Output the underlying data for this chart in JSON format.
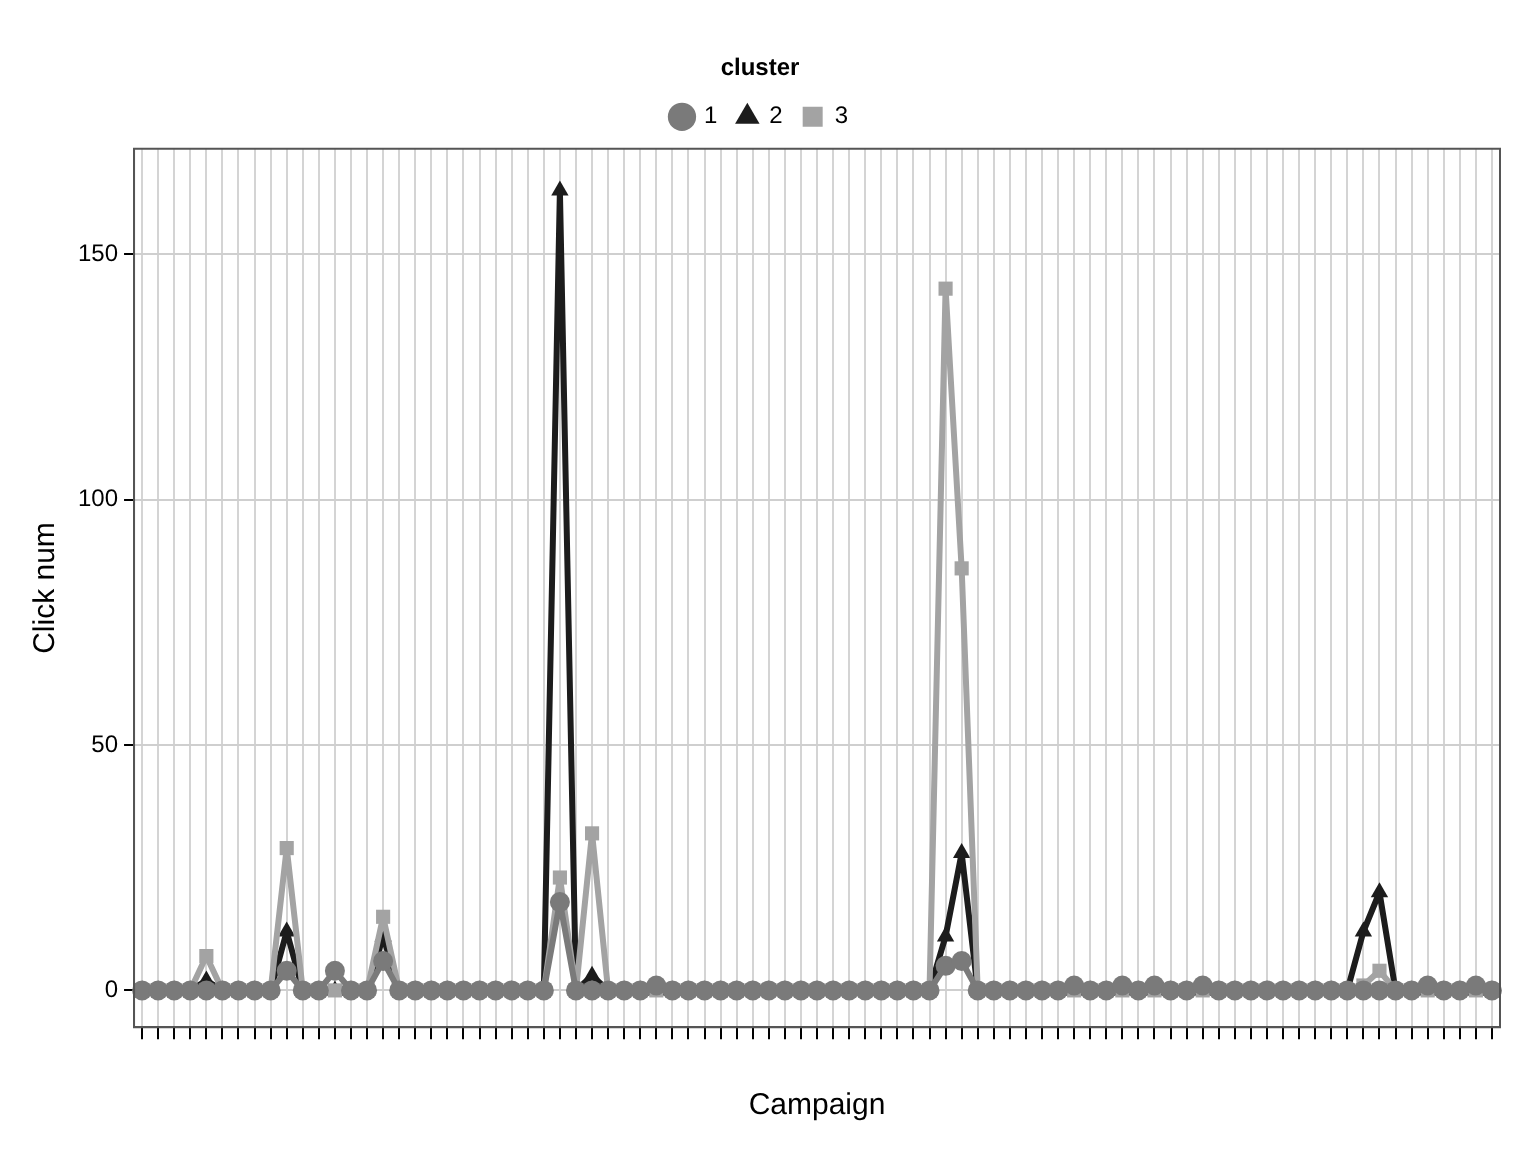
{
  "chart_data": {
    "type": "line",
    "xlabel": "Campaign",
    "ylabel": "Click num",
    "legend_title": "cluster",
    "legend": "top",
    "grid": true,
    "line_style": "solid",
    "categories": [
      null,
      null,
      null,
      null,
      null,
      null,
      null,
      null,
      null,
      null,
      null,
      null,
      null,
      null,
      null,
      null,
      null,
      null,
      null,
      null,
      null,
      null,
      null,
      null,
      null,
      null,
      null,
      null,
      null,
      null,
      null,
      null,
      null,
      null,
      null,
      null,
      null,
      null,
      null,
      null,
      null,
      null,
      null,
      null,
      null,
      null,
      null,
      null,
      null,
      null,
      null,
      null,
      null,
      null,
      null,
      null,
      null,
      null,
      null,
      null,
      null,
      null,
      null,
      null,
      null,
      null,
      null,
      null,
      null,
      null,
      null,
      null,
      null,
      null,
      null,
      null,
      null,
      null,
      null,
      null,
      null,
      null,
      null,
      null,
      null
    ],
    "ylim": [
      -7.5,
      171.5
    ],
    "yticks": [
      0,
      50,
      100,
      150
    ],
    "series": [
      {
        "name": "1",
        "color": "#7a7a7a",
        "marker": "circle",
        "values": [
          0,
          0,
          0,
          0,
          0,
          0,
          0,
          0,
          0,
          4,
          0,
          0,
          4,
          0,
          0,
          6,
          0,
          0,
          0,
          0,
          0,
          0,
          0,
          0,
          0,
          0,
          18,
          0,
          0,
          0,
          0,
          0,
          1,
          0,
          0,
          0,
          0,
          0,
          0,
          0,
          0,
          0,
          0,
          0,
          0,
          0,
          0,
          0,
          0,
          0,
          5,
          6,
          0,
          0,
          0,
          0,
          0,
          0,
          1,
          0,
          0,
          1,
          0,
          1,
          0,
          0,
          1,
          0,
          0,
          0,
          0,
          0,
          0,
          0,
          0,
          0,
          0,
          0,
          0,
          0,
          1,
          0,
          0,
          1,
          0
        ]
      },
      {
        "name": "2",
        "color": "#1c1c1c",
        "marker": "triangle",
        "values": [
          0,
          0,
          0,
          0,
          2,
          0,
          0,
          0,
          0,
          12,
          0,
          0,
          0,
          0,
          0,
          11,
          0,
          0,
          0,
          0,
          0,
          0,
          0,
          0,
          0,
          0,
          163,
          0,
          3,
          0,
          0,
          0,
          0,
          0,
          0,
          0,
          0,
          0,
          0,
          0,
          0,
          0,
          0,
          0,
          0,
          0,
          0,
          0,
          0,
          0,
          11,
          28,
          0,
          0,
          0,
          0,
          0,
          0,
          0,
          0,
          0,
          0,
          0,
          0,
          0,
          0,
          0,
          0,
          0,
          0,
          0,
          0,
          0,
          0,
          0,
          0,
          12,
          20,
          0,
          0,
          0,
          0,
          0,
          0,
          0
        ]
      },
      {
        "name": "3",
        "color": "#a3a3a3",
        "marker": "square",
        "values": [
          0,
          0,
          0,
          0,
          7,
          0,
          0,
          0,
          0,
          29,
          0,
          0,
          0,
          0,
          0,
          15,
          0,
          0,
          0,
          0,
          0,
          0,
          0,
          0,
          0,
          0,
          23,
          0,
          32,
          0,
          0,
          0,
          0,
          0,
          0,
          0,
          0,
          0,
          0,
          0,
          0,
          0,
          0,
          0,
          0,
          0,
          0,
          0,
          0,
          0,
          143,
          86,
          0,
          0,
          0,
          0,
          0,
          0,
          0,
          0,
          0,
          0,
          0,
          0,
          0,
          0,
          0,
          0,
          0,
          0,
          0,
          0,
          0,
          0,
          0,
          0,
          1,
          4,
          0,
          0,
          0,
          0,
          0,
          0,
          0
        ]
      }
    ]
  }
}
